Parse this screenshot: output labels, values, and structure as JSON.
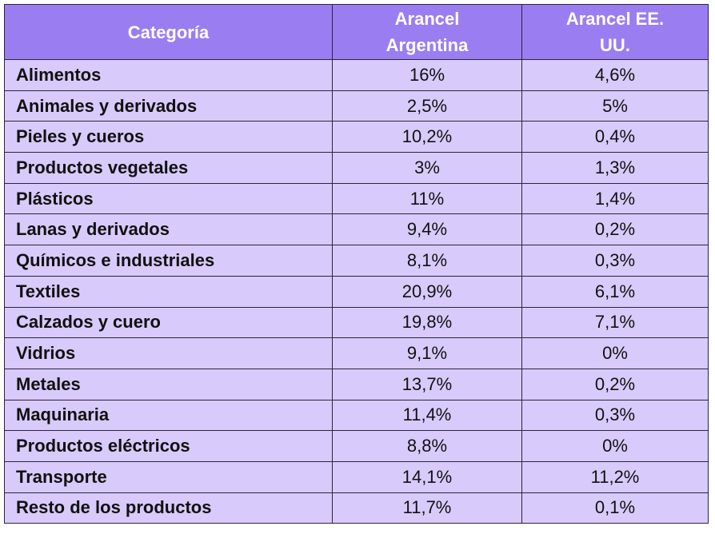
{
  "table": {
    "header": [
      "Categoría",
      "Arancel Argentina",
      "Arancel EE. UU."
    ],
    "rows": [
      [
        "Alimentos",
        "16%",
        "4,6%"
      ],
      [
        "Animales y derivados",
        "2,5%",
        "5%"
      ],
      [
        "Pieles y cueros",
        "10,2%",
        "0,4%"
      ],
      [
        "Productos vegetales",
        "3%",
        "1,3%"
      ],
      [
        "Plásticos",
        "11%",
        "1,4%"
      ],
      [
        "Lanas y derivados",
        "9,4%",
        "0,2%"
      ],
      [
        "Químicos e industriales",
        "8,1%",
        "0,3%"
      ],
      [
        "Textiles",
        "20,9%",
        "6,1%"
      ],
      [
        "Calzados y cuero",
        "19,8%",
        "7,1%"
      ],
      [
        "Vidrios",
        "9,1%",
        "0%"
      ],
      [
        "Metales",
        "13,7%",
        "0,2%"
      ],
      [
        "Maquinaria",
        "11,4%",
        "0,3%"
      ],
      [
        "Productos eléctricos",
        "8,8%",
        "0%"
      ],
      [
        "Transporte",
        "14,1%",
        "11,2%"
      ],
      [
        "Resto de los productos",
        "11,7%",
        "0,1%"
      ]
    ]
  }
}
